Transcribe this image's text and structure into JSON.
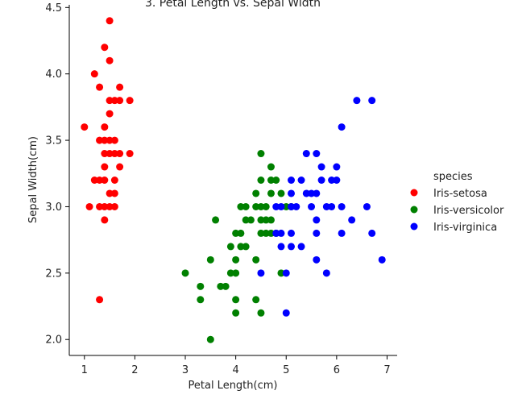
{
  "chart_data": {
    "type": "scatter",
    "title": "3. Petal Length vs. Sepal Width",
    "xlabel": "Petal Length(cm)",
    "ylabel": "Sepal Width(cm)",
    "xlim": [
      0.7,
      7.2
    ],
    "ylim": [
      1.88,
      4.52
    ],
    "xticks": [
      1,
      2,
      3,
      4,
      5,
      6,
      7
    ],
    "yticks": [
      2.0,
      2.5,
      3.0,
      3.5,
      4.0,
      4.5
    ],
    "ytick_labels": [
      "2.0",
      "2.5",
      "3.0",
      "3.5",
      "4.0",
      "4.5"
    ],
    "grid": false,
    "legend": {
      "title": "species",
      "placement": "right"
    },
    "series": [
      {
        "name": "Iris-setosa",
        "color": "#ff0000",
        "points": [
          [
            1.0,
            3.6
          ],
          [
            1.1,
            3.0
          ],
          [
            1.2,
            4.0
          ],
          [
            1.2,
            3.2
          ],
          [
            1.3,
            3.9
          ],
          [
            1.3,
            3.5
          ],
          [
            1.3,
            3.0
          ],
          [
            1.3,
            3.2
          ],
          [
            1.3,
            2.3
          ],
          [
            1.4,
            4.2
          ],
          [
            1.4,
            3.6
          ],
          [
            1.4,
            3.5
          ],
          [
            1.4,
            3.4
          ],
          [
            1.4,
            3.3
          ],
          [
            1.4,
            3.2
          ],
          [
            1.4,
            3.0
          ],
          [
            1.4,
            2.9
          ],
          [
            1.5,
            4.4
          ],
          [
            1.5,
            4.1
          ],
          [
            1.5,
            3.8
          ],
          [
            1.5,
            3.7
          ],
          [
            1.5,
            3.5
          ],
          [
            1.5,
            3.4
          ],
          [
            1.5,
            3.1
          ],
          [
            1.5,
            3.0
          ],
          [
            1.6,
            3.8
          ],
          [
            1.6,
            3.5
          ],
          [
            1.6,
            3.4
          ],
          [
            1.6,
            3.2
          ],
          [
            1.6,
            3.1
          ],
          [
            1.6,
            3.0
          ],
          [
            1.7,
            3.9
          ],
          [
            1.7,
            3.8
          ],
          [
            1.7,
            3.4
          ],
          [
            1.7,
            3.3
          ],
          [
            1.9,
            3.8
          ],
          [
            1.9,
            3.4
          ]
        ]
      },
      {
        "name": "Iris-versicolor",
        "color": "#008000",
        "points": [
          [
            3.0,
            2.5
          ],
          [
            3.3,
            2.4
          ],
          [
            3.3,
            2.3
          ],
          [
            3.5,
            2.6
          ],
          [
            3.5,
            2.0
          ],
          [
            3.6,
            2.9
          ],
          [
            3.7,
            2.4
          ],
          [
            3.8,
            2.4
          ],
          [
            3.9,
            2.7
          ],
          [
            3.9,
            2.5
          ],
          [
            4.0,
            2.8
          ],
          [
            4.0,
            2.6
          ],
          [
            4.0,
            2.5
          ],
          [
            4.0,
            2.3
          ],
          [
            4.0,
            2.2
          ],
          [
            4.1,
            3.0
          ],
          [
            4.1,
            2.8
          ],
          [
            4.1,
            2.7
          ],
          [
            4.2,
            3.0
          ],
          [
            4.2,
            2.9
          ],
          [
            4.2,
            2.7
          ],
          [
            4.3,
            2.9
          ],
          [
            4.4,
            3.1
          ],
          [
            4.4,
            3.0
          ],
          [
            4.4,
            2.6
          ],
          [
            4.4,
            2.3
          ],
          [
            4.5,
            3.4
          ],
          [
            4.5,
            3.2
          ],
          [
            4.5,
            3.0
          ],
          [
            4.5,
            2.9
          ],
          [
            4.5,
            2.8
          ],
          [
            4.5,
            2.2
          ],
          [
            4.6,
            3.0
          ],
          [
            4.6,
            2.9
          ],
          [
            4.6,
            2.8
          ],
          [
            4.7,
            3.3
          ],
          [
            4.7,
            3.2
          ],
          [
            4.7,
            3.1
          ],
          [
            4.7,
            2.9
          ],
          [
            4.7,
            2.8
          ],
          [
            4.8,
            3.2
          ],
          [
            4.8,
            2.8
          ],
          [
            4.9,
            3.1
          ],
          [
            4.9,
            2.5
          ],
          [
            5.0,
            3.0
          ],
          [
            5.1,
            3.0
          ]
        ]
      },
      {
        "name": "Iris-virginica",
        "color": "#0000ff",
        "points": [
          [
            4.5,
            2.5
          ],
          [
            4.8,
            3.0
          ],
          [
            4.8,
            2.8
          ],
          [
            4.9,
            3.0
          ],
          [
            4.9,
            2.8
          ],
          [
            4.9,
            2.7
          ],
          [
            5.0,
            2.5
          ],
          [
            5.0,
            2.2
          ],
          [
            5.1,
            3.2
          ],
          [
            5.1,
            3.1
          ],
          [
            5.1,
            3.0
          ],
          [
            5.1,
            2.8
          ],
          [
            5.1,
            2.7
          ],
          [
            5.2,
            3.0
          ],
          [
            5.3,
            3.2
          ],
          [
            5.3,
            2.7
          ],
          [
            5.4,
            3.4
          ],
          [
            5.4,
            3.1
          ],
          [
            5.5,
            3.1
          ],
          [
            5.5,
            3.0
          ],
          [
            5.6,
            3.4
          ],
          [
            5.6,
            3.1
          ],
          [
            5.6,
            2.9
          ],
          [
            5.6,
            2.8
          ],
          [
            5.6,
            2.6
          ],
          [
            5.7,
            3.3
          ],
          [
            5.7,
            3.2
          ],
          [
            5.8,
            3.0
          ],
          [
            5.8,
            2.5
          ],
          [
            5.9,
            3.2
          ],
          [
            5.9,
            3.0
          ],
          [
            6.0,
            3.3
          ],
          [
            6.0,
            3.2
          ],
          [
            6.1,
            3.6
          ],
          [
            6.1,
            3.0
          ],
          [
            6.1,
            2.8
          ],
          [
            6.3,
            2.9
          ],
          [
            6.4,
            3.8
          ],
          [
            6.6,
            3.0
          ],
          [
            6.7,
            3.8
          ],
          [
            6.7,
            2.8
          ],
          [
            6.9,
            2.6
          ]
        ]
      }
    ]
  }
}
